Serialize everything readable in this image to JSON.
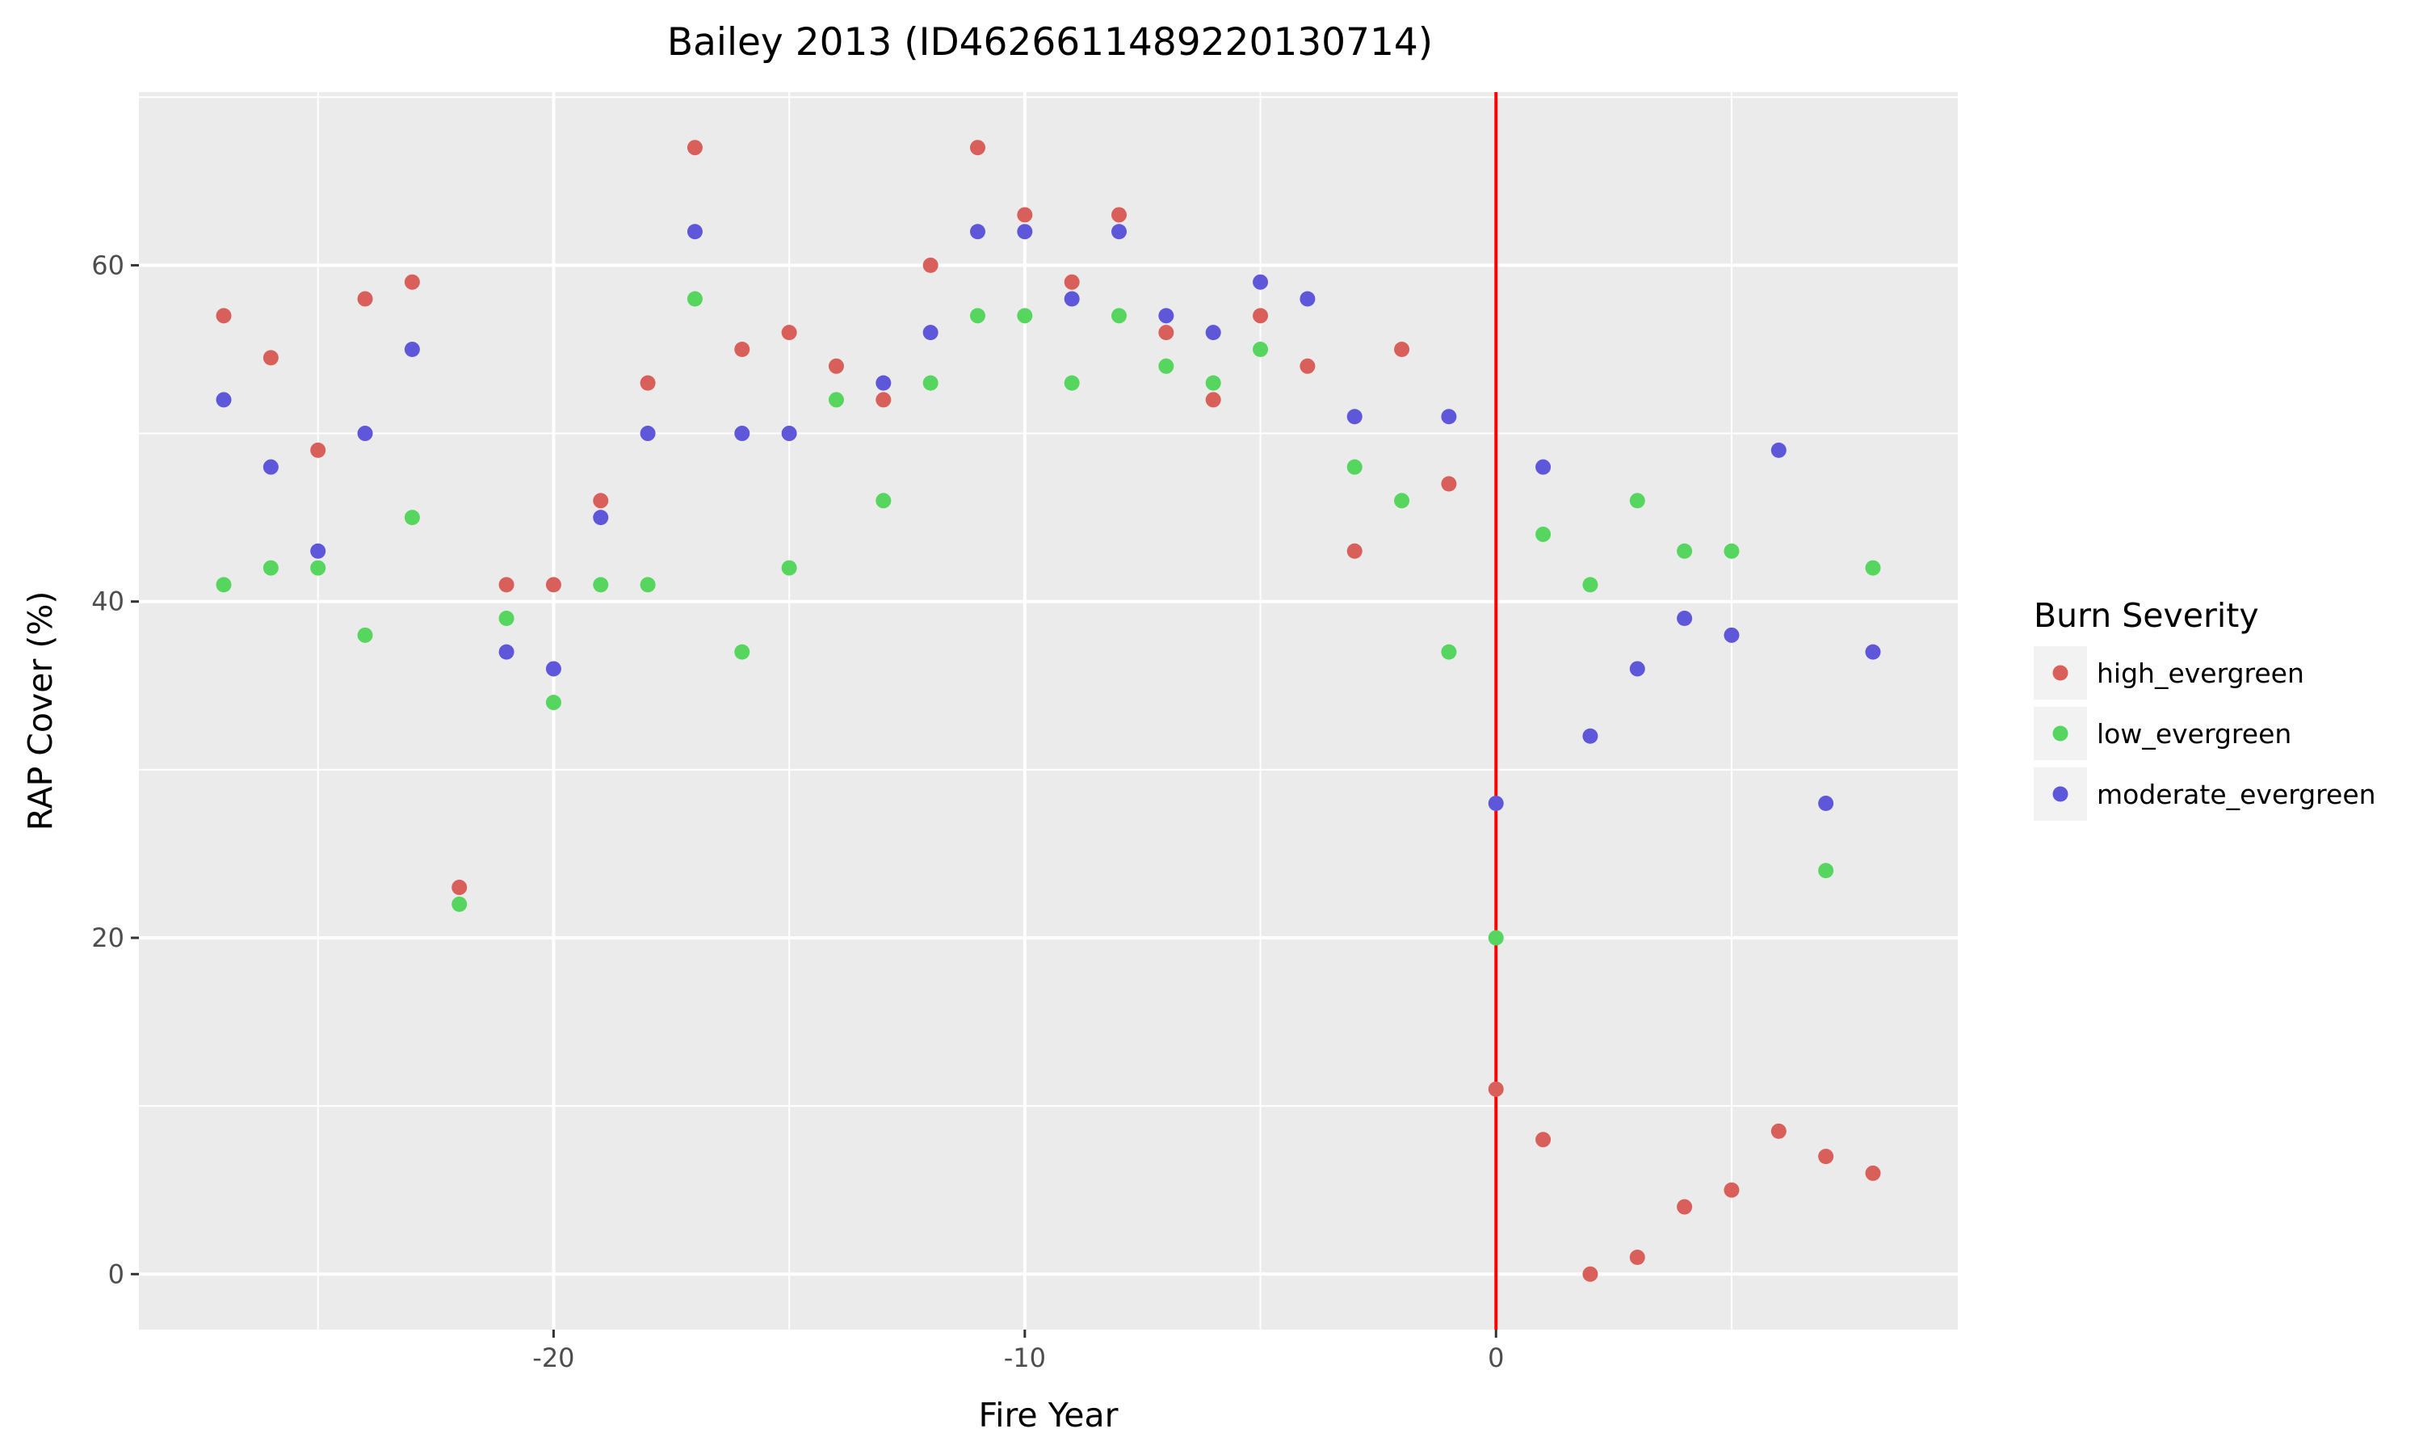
{
  "chart_data": {
    "type": "scatter",
    "title": "Bailey 2013 (ID4626611489220130714)",
    "xlabel": "Fire Year",
    "ylabel": "RAP Cover (%)",
    "xlim": [
      -28.8,
      9.8
    ],
    "ylim": [
      -3.3,
      70.3
    ],
    "xticks": [
      -20,
      -10,
      0
    ],
    "yticks": [
      0,
      20,
      40,
      60
    ],
    "grid": true,
    "legend": {
      "title": "Burn Severity",
      "position": "right"
    },
    "vline": {
      "x": 0,
      "color": "#ff0000"
    },
    "colors": {
      "panel": "#ebebeb",
      "grid": "#ffffff",
      "vline": "#ff0000"
    },
    "series": [
      {
        "name": "high_evergreen",
        "color": "#d95f5a",
        "points": [
          [
            -27,
            57
          ],
          [
            -26,
            54.5
          ],
          [
            -25,
            49
          ],
          [
            -24,
            58
          ],
          [
            -23,
            59
          ],
          [
            -22,
            23
          ],
          [
            -21,
            41
          ],
          [
            -20,
            41
          ],
          [
            -19,
            46
          ],
          [
            -18,
            53
          ],
          [
            -17,
            67
          ],
          [
            -16,
            55
          ],
          [
            -15,
            56
          ],
          [
            -14,
            54
          ],
          [
            -13,
            52
          ],
          [
            -12,
            60
          ],
          [
            -11,
            67
          ],
          [
            -10,
            63
          ],
          [
            -9,
            59
          ],
          [
            -8,
            63
          ],
          [
            -7,
            56
          ],
          [
            -6,
            52
          ],
          [
            -5,
            57
          ],
          [
            -4,
            54
          ],
          [
            -3,
            43
          ],
          [
            -2,
            55
          ],
          [
            -1,
            47
          ],
          [
            0,
            11
          ],
          [
            1,
            8
          ],
          [
            2,
            0
          ],
          [
            3,
            1
          ],
          [
            4,
            4
          ],
          [
            5,
            5
          ],
          [
            6,
            8.5
          ],
          [
            7,
            7
          ],
          [
            8,
            6
          ]
        ]
      },
      {
        "name": "low_evergreen",
        "color": "#56d65e",
        "points": [
          [
            -27,
            41
          ],
          [
            -26,
            42
          ],
          [
            -25,
            42
          ],
          [
            -24,
            38
          ],
          [
            -23,
            45
          ],
          [
            -22,
            22
          ],
          [
            -21,
            39
          ],
          [
            -20,
            34
          ],
          [
            -19,
            41
          ],
          [
            -18,
            41
          ],
          [
            -17,
            58
          ],
          [
            -16,
            37
          ],
          [
            -15,
            42
          ],
          [
            -14,
            52
          ],
          [
            -13,
            46
          ],
          [
            -12,
            53
          ],
          [
            -11,
            57
          ],
          [
            -10,
            57
          ],
          [
            -9,
            53
          ],
          [
            -8,
            57
          ],
          [
            -7,
            54
          ],
          [
            -6,
            53
          ],
          [
            -5,
            55
          ],
          [
            -3,
            48
          ],
          [
            -2,
            46
          ],
          [
            -1,
            37
          ],
          [
            0,
            20
          ],
          [
            1,
            44
          ],
          [
            2,
            41
          ],
          [
            3,
            46
          ],
          [
            4,
            43
          ],
          [
            5,
            43
          ],
          [
            7,
            24
          ],
          [
            8,
            42
          ]
        ]
      },
      {
        "name": "moderate_evergreen",
        "color": "#5f57d9",
        "points": [
          [
            -27,
            52
          ],
          [
            -26,
            48
          ],
          [
            -25,
            43
          ],
          [
            -24,
            50
          ],
          [
            -23,
            55
          ],
          [
            -21,
            37
          ],
          [
            -20,
            36
          ],
          [
            -19,
            45
          ],
          [
            -18,
            50
          ],
          [
            -17,
            62
          ],
          [
            -16,
            50
          ],
          [
            -15,
            50
          ],
          [
            -13,
            53
          ],
          [
            -12,
            56
          ],
          [
            -11,
            62
          ],
          [
            -10,
            62
          ],
          [
            -9,
            58
          ],
          [
            -8,
            62
          ],
          [
            -7,
            57
          ],
          [
            -6,
            56
          ],
          [
            -5,
            59
          ],
          [
            -4,
            58
          ],
          [
            -3,
            51
          ],
          [
            -1,
            51
          ],
          [
            0,
            28
          ],
          [
            1,
            48
          ],
          [
            2,
            32
          ],
          [
            3,
            36
          ],
          [
            4,
            39
          ],
          [
            5,
            38
          ],
          [
            6,
            49
          ],
          [
            7,
            28
          ],
          [
            8,
            37
          ]
        ]
      }
    ]
  }
}
